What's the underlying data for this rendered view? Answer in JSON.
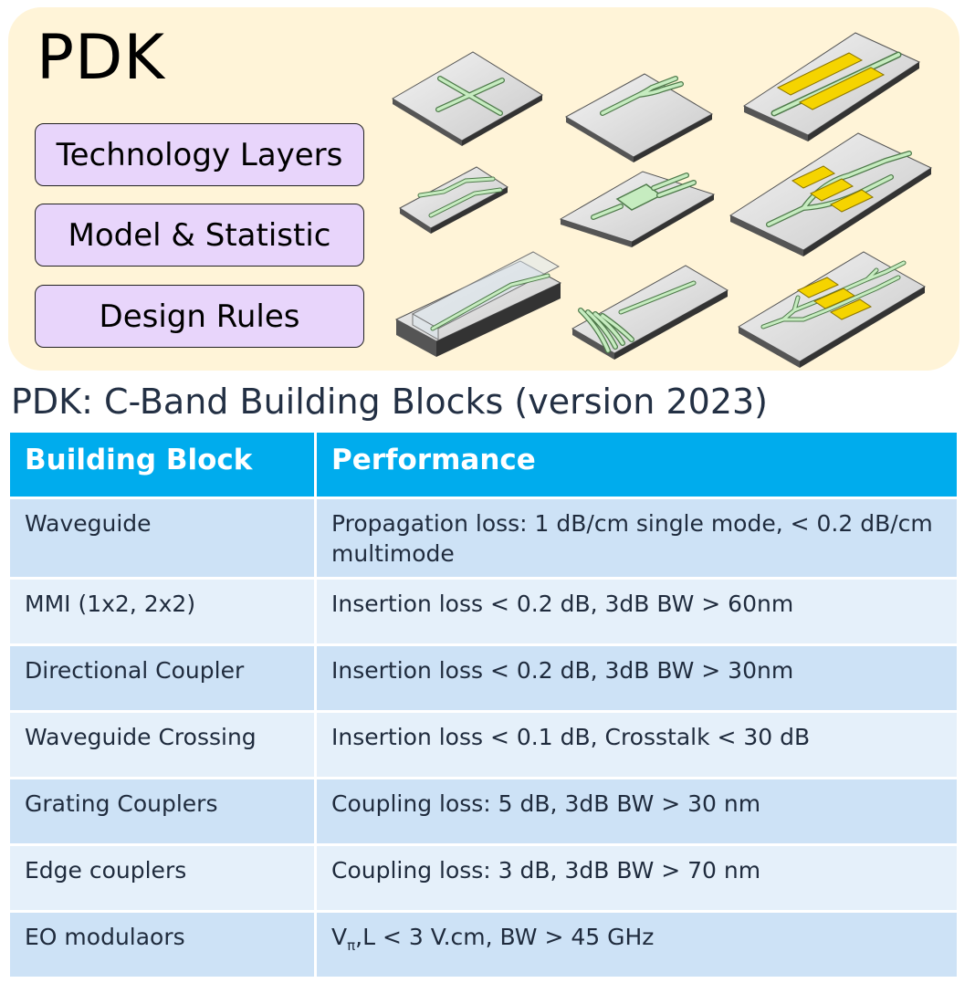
{
  "pdk_panel": {
    "title": "PDK",
    "layers": [
      "Technology Layers",
      "Model & Statistic",
      "Design Rules"
    ]
  },
  "table": {
    "title": "PDK: C-Band Building Blocks (version 2023)",
    "headers": [
      "Building Block",
      "Performance"
    ],
    "rows": [
      {
        "block": "Waveguide",
        "performance": "Propagation loss: 1 dB/cm single mode, < 0.2 dB/cm multimode"
      },
      {
        "block": "MMI (1x2, 2x2)",
        "performance": "Insertion loss < 0.2 dB, 3dB BW > 60nm"
      },
      {
        "block": "Directional Coupler",
        "performance": "Insertion loss < 0.2 dB, 3dB BW > 30nm"
      },
      {
        "block": "Waveguide Crossing",
        "performance": "Insertion loss < 0.1 dB, Crosstalk < 30 dB"
      },
      {
        "block": "Grating Couplers",
        "performance": "Coupling loss: 5 dB, 3dB BW > 30 nm"
      },
      {
        "block": "Edge couplers",
        "performance": "Coupling loss: 3 dB, 3dB BW > 70 nm"
      },
      {
        "block": "EO modulaors",
        "performance_parts": {
          "v": "V",
          "sub": "π",
          "rest": ",L < 3 V.cm,  BW > 45 GHz"
        }
      }
    ]
  },
  "colors": {
    "panel_bg": "#fff4d8",
    "layer_button_bg": "#e8d5fb",
    "header_bg": "#00aced",
    "row_dark": "#cde2f6",
    "row_light": "#e5f0fa",
    "waveguide": "#c6ecc0",
    "electrode": "#f5d400"
  },
  "icons": [
    "crossing-chip-icon",
    "y-splitter-chip-icon",
    "modulator-chip-icon",
    "directional-coupler-chip-icon",
    "mmi-chip-icon",
    "mzi-modulator-chip-icon",
    "edge-coupler-chip-icon",
    "grating-coupler-chip-icon",
    "dual-mzi-chip-icon"
  ]
}
